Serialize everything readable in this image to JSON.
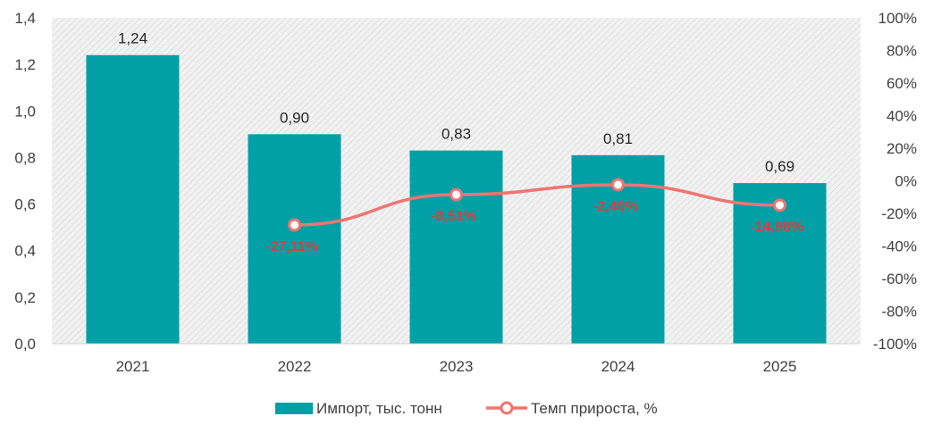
{
  "chart_data": {
    "type": "bar",
    "categories": [
      "2021",
      "2022",
      "2023",
      "2024",
      "2025"
    ],
    "series": [
      {
        "name": "Импорт, тыс. тонн",
        "type": "bar",
        "axis": "left",
        "values": [
          1.24,
          0.9,
          0.83,
          0.81,
          0.69
        ],
        "labels": [
          "1,24",
          "0,90",
          "0,83",
          "0,81",
          "0,69"
        ],
        "color": "#00A0A6"
      },
      {
        "name": "Темп прироста, %",
        "type": "line",
        "axis": "right",
        "values": [
          null,
          -27.11,
          -8.51,
          -2.46,
          -14.98
        ],
        "labels": [
          "",
          "-27,11%",
          "-8,51%",
          "-2,46%",
          "-14,98%"
        ],
        "color": "#F07470",
        "label_color": "#E03C3C"
      }
    ],
    "y_left": {
      "lim": [
        0,
        1.4
      ],
      "ticks": [
        0,
        0.2,
        0.4,
        0.6,
        0.8,
        1.0,
        1.2,
        1.4
      ],
      "tick_labels": [
        "0,0",
        "0,2",
        "0,4",
        "0,6",
        "0,8",
        "1,0",
        "1,2",
        "1,4"
      ]
    },
    "y_right": {
      "lim": [
        -100,
        100
      ],
      "ticks": [
        -100,
        -80,
        -60,
        -40,
        -20,
        0,
        20,
        40,
        60,
        80,
        100
      ],
      "tick_labels": [
        "-100%",
        "-80%",
        "-60%",
        "-40%",
        "-20%",
        "0%",
        "20%",
        "40%",
        "60%",
        "80%",
        "100%"
      ]
    },
    "title": "",
    "xlabel": "",
    "ylabel": "",
    "grid": false,
    "legend": "bottom-center",
    "plot_background": "hatched-gray"
  }
}
